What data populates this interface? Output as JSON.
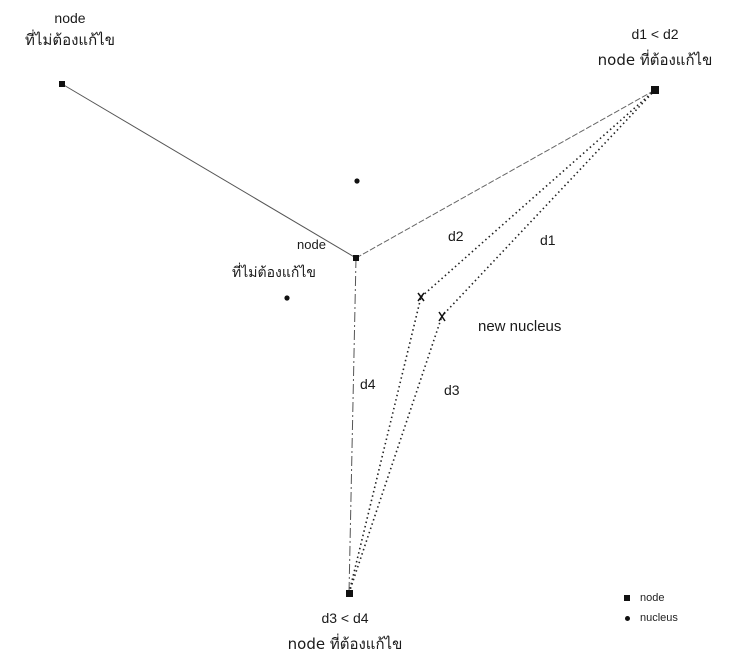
{
  "labels": {
    "top_left_node": {
      "line1": "node",
      "line2": "ที่ไม่ต้องแก้ไข"
    },
    "top_right_node": {
      "line1": "d1 < d2",
      "line2": "node ที่ต้องแก้ไข"
    },
    "center_node": {
      "line1": "node",
      "line2": "ที่ไม่ต้องแก้ไข"
    },
    "bottom_node": {
      "line1": "d3 < d4",
      "line2": "node ที่ต้องแก้ไข"
    },
    "new_nucleus": "new nucleus",
    "d1": "d1",
    "d2": "d2",
    "d3": "d3",
    "d4": "d4"
  },
  "legend": [
    {
      "symbol": "square",
      "label": "node"
    },
    {
      "symbol": "dot",
      "label": "nucleus"
    }
  ],
  "colors": {
    "ink": "#1a1a1a",
    "line": "#555555"
  }
}
